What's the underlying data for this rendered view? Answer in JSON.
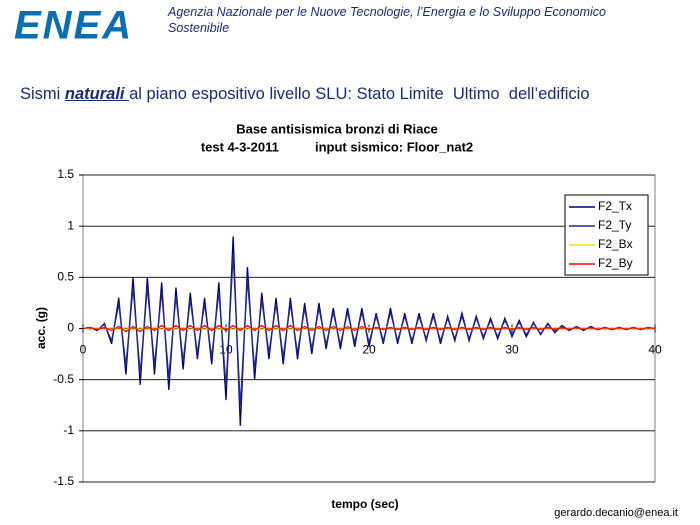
{
  "header": {
    "logo": "ENEA",
    "agency_line1": "Agenzia Nazionale per le Nuove Tecnologie, l’Energia e lo Sviluppo Economico",
    "agency_line2": "Sostenibile"
  },
  "slide_title": {
    "part1": "Sismi ",
    "emphasis": "naturali ",
    "part2": "al piano espositivo livello SLU: Stato Limite  Ultimo  dell’edificio"
  },
  "footer": "gerardo.decanio@enea.it",
  "chart_data": {
    "type": "line",
    "title": "Base antisismica bronzi di Riace",
    "subtitle": "test 4-3-2011          input sismico: Floor_nat2",
    "x_label": "tempo (sec)",
    "y_label": "acc. (g)",
    "xlim": [
      0,
      40
    ],
    "xticks": [
      0,
      10,
      20,
      30,
      40
    ],
    "ylim": [
      -1.5,
      1.5
    ],
    "yticks": [
      1.5,
      1,
      0.5,
      0,
      -0.5,
      -1,
      -1.5
    ],
    "grid": true,
    "legend": "upper right",
    "x": [
      0,
      0.5,
      1,
      1.5,
      2,
      2.5,
      3,
      3.5,
      4,
      4.5,
      5,
      5.5,
      6,
      6.5,
      7,
      7.5,
      8,
      8.5,
      9,
      9.5,
      10,
      10.5,
      11,
      11.5,
      12,
      12.5,
      13,
      13.5,
      14,
      14.5,
      15,
      15.5,
      16,
      16.5,
      17,
      17.5,
      18,
      18.5,
      19,
      19.5,
      20,
      20.5,
      21,
      21.5,
      22,
      22.5,
      23,
      23.5,
      24,
      24.5,
      25,
      25.5,
      26,
      26.5,
      27,
      27.5,
      28,
      28.5,
      29,
      29.5,
      30,
      30.5,
      31,
      31.5,
      32,
      32.5,
      33,
      33.5,
      34,
      34.5,
      35,
      35.5,
      36,
      36.5,
      37,
      37.5,
      38,
      38.5,
      39,
      39.5,
      40
    ],
    "series": [
      {
        "name": "F2_Tx",
        "color": "#000080",
        "values": [
          0,
          0.01,
          -0.02,
          0.05,
          -0.15,
          0.3,
          -0.45,
          0.5,
          -0.55,
          0.5,
          -0.45,
          0.45,
          -0.6,
          0.4,
          -0.4,
          0.35,
          -0.3,
          0.3,
          -0.35,
          0.45,
          -0.7,
          0.9,
          -0.95,
          0.6,
          -0.5,
          0.35,
          -0.3,
          0.3,
          -0.35,
          0.3,
          -0.3,
          0.25,
          -0.25,
          0.25,
          -0.2,
          0.2,
          -0.2,
          0.2,
          -0.18,
          0.2,
          -0.18,
          0.15,
          -0.15,
          0.2,
          -0.15,
          0.15,
          -0.15,
          0.15,
          -0.12,
          0.15,
          -0.15,
          0.12,
          -0.12,
          0.15,
          -0.12,
          0.12,
          -0.1,
          0.1,
          -0.1,
          0.1,
          -0.08,
          0.08,
          -0.08,
          0.06,
          -0.06,
          0.05,
          -0.04,
          0.03,
          -0.02,
          0.02,
          -0.02,
          0.02,
          -0.01,
          0.01,
          -0.01,
          0.01,
          -0.01,
          0.01,
          -0.01,
          0.01,
          0
        ]
      },
      {
        "name": "F2_Ty",
        "color": "#1f2a8a",
        "values": [
          0,
          0.01,
          -0.01,
          0.04,
          -0.12,
          0.24,
          -0.36,
          0.4,
          -0.44,
          0.4,
          -0.36,
          0.36,
          -0.48,
          0.32,
          -0.32,
          0.28,
          -0.24,
          0.24,
          -0.28,
          0.36,
          -0.56,
          0.72,
          -0.76,
          0.48,
          -0.4,
          0.28,
          -0.24,
          0.24,
          -0.28,
          0.24,
          -0.24,
          0.2,
          -0.2,
          0.2,
          -0.16,
          0.16,
          -0.16,
          0.16,
          -0.14,
          0.16,
          -0.14,
          0.12,
          -0.12,
          0.16,
          -0.12,
          0.12,
          -0.12,
          0.12,
          -0.1,
          0.12,
          -0.12,
          0.1,
          -0.1,
          0.12,
          -0.1,
          0.1,
          -0.08,
          0.08,
          -0.08,
          0.08,
          -0.06,
          0.06,
          -0.06,
          0.05,
          -0.05,
          0.04,
          -0.03,
          0.02,
          -0.02,
          0.02,
          -0.01,
          0.01,
          -0.01,
          0.01,
          -0.01,
          0.01,
          -0.01,
          0.01,
          -0.01,
          0.01,
          0
        ]
      },
      {
        "name": "F2_Bx",
        "color": "#ffd700",
        "values": [
          0.01,
          -0.01,
          0.01,
          -0.01,
          0.01,
          -0.01,
          0.01,
          -0.01,
          0.01,
          -0.01,
          0.01,
          -0.01,
          0.01,
          -0.01,
          0.01,
          -0.01,
          0.01,
          -0.01,
          0.01,
          -0.01,
          0.01,
          -0.01,
          0.01,
          -0.01,
          0.01,
          -0.01,
          0.01,
          -0.01,
          0.01,
          -0.01,
          0.01,
          -0.01,
          0.01,
          -0.01,
          0.01,
          -0.01,
          0.01,
          -0.01,
          0.01,
          -0.01,
          0.01,
          -0.01,
          0.01,
          -0.01,
          0.01,
          -0.01,
          0.01,
          -0.01,
          0.01,
          -0.01,
          0.01,
          -0.01,
          0.01,
          -0.01,
          0.01,
          -0.01,
          0.01,
          -0.01,
          0.01,
          -0.01,
          0.01,
          -0.01,
          0.01,
          -0.01,
          0.01,
          -0.01,
          0.01,
          -0.01,
          0.01,
          -0.01,
          0.01,
          -0.01,
          0.01,
          -0.01,
          0.01,
          -0.01,
          0.01,
          -0.01,
          0.01,
          -0.01,
          0
        ]
      },
      {
        "name": "F2_By",
        "color": "#ff0000",
        "values": [
          0,
          0.01,
          -0.01,
          0.01,
          -0.02,
          0.02,
          -0.03,
          0.02,
          -0.03,
          0.02,
          -0.02,
          0.03,
          -0.02,
          0.03,
          -0.02,
          0.03,
          -0.02,
          0.03,
          -0.02,
          0.03,
          -0.02,
          0.03,
          -0.02,
          0.03,
          -0.02,
          0.03,
          -0.02,
          0.03,
          -0.02,
          0.03,
          -0.02,
          0.02,
          -0.02,
          0.02,
          -0.02,
          0.02,
          -0.02,
          0.02,
          -0.02,
          0.02,
          -0.01,
          0.01,
          -0.01,
          0.01,
          -0.01,
          0.01,
          -0.01,
          0.01,
          -0.01,
          0.01,
          -0.01,
          0.01,
          -0.01,
          0.01,
          -0.01,
          0.01,
          -0.01,
          0.01,
          -0.01,
          0.01,
          -0.01,
          0.01,
          -0.01,
          0.01,
          -0.01,
          0.01,
          -0.01,
          0.01,
          -0.01,
          0.01,
          -0.01,
          0.01,
          -0.01,
          0.01,
          -0.01,
          0.01,
          -0.01,
          0.01,
          -0.01,
          0.01,
          0
        ]
      }
    ]
  }
}
